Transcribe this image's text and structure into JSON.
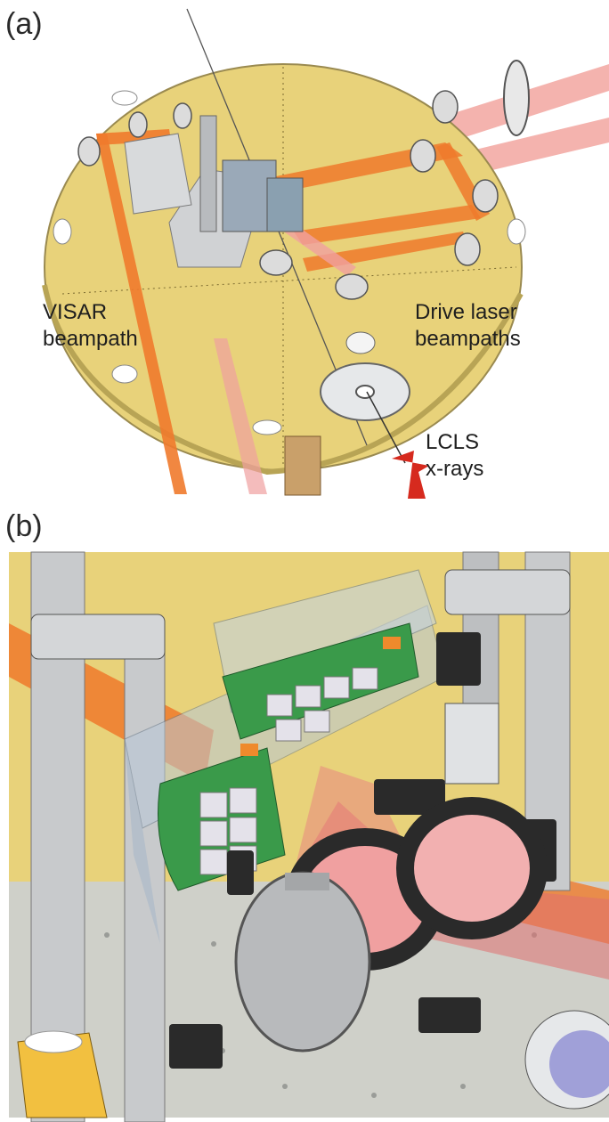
{
  "panel_a": {
    "label": "(a)",
    "annotations": {
      "visar_line1": "VISAR",
      "visar_line2": "beampath",
      "drive_line1": "Drive laser",
      "drive_line2": "beampaths",
      "lcls_line1": "LCLS",
      "lcls_line2": "x-rays"
    }
  },
  "panel_b": {
    "label": "(b)"
  },
  "colors": {
    "table": "#e8d27a",
    "drive_beam": "#ef7a2c",
    "beam_pink": "#f0a0a0",
    "xray_arrow": "#d62a1e",
    "steel": "#c4c6c8",
    "pcb_green": "#3a9a4a"
  }
}
